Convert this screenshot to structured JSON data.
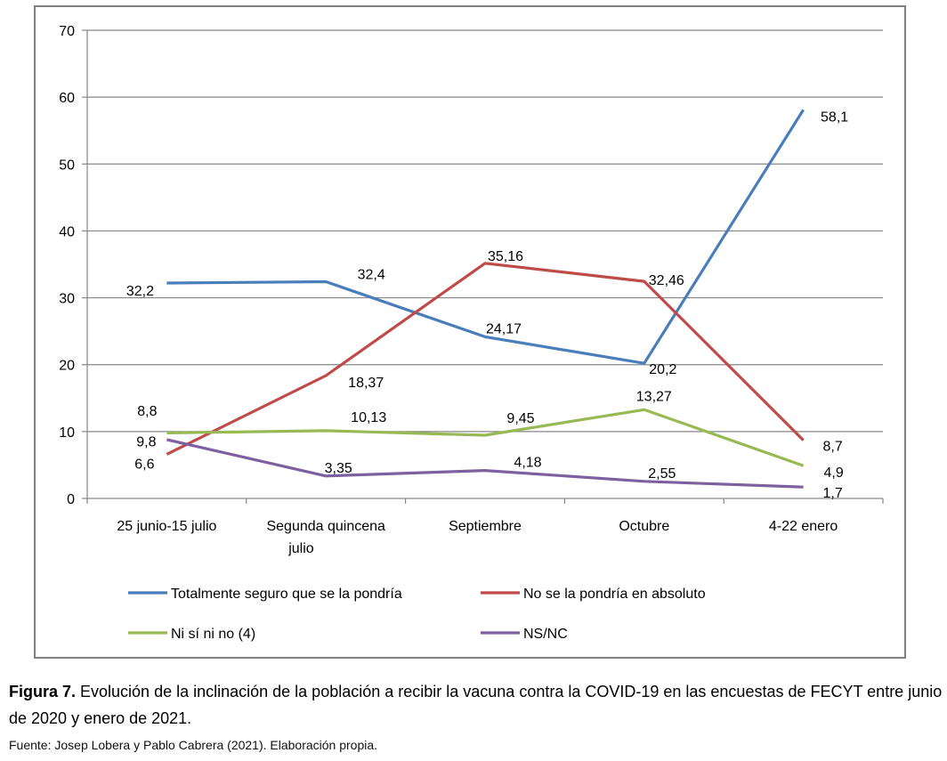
{
  "chart_data": {
    "type": "line",
    "categories": [
      "25 junio-15 julio",
      "Segunda quincena julio",
      "Septiembre",
      "Octubre",
      "4-22 enero"
    ],
    "category_lines": [
      [
        "25 junio-15 julio"
      ],
      [
        "Segunda quincena",
        "julio"
      ],
      [
        "Septiembre"
      ],
      [
        "Octubre"
      ],
      [
        "4-22 enero"
      ]
    ],
    "ylim": [
      0,
      70
    ],
    "yticks": [
      0,
      10,
      20,
      30,
      40,
      50,
      60,
      70
    ],
    "grid": true,
    "legend": "bottom",
    "series": [
      {
        "name": "Totalmente seguro que se la pondría",
        "color": "#4a7ebb",
        "values": [
          32.2,
          32.4,
          24.17,
          20.2,
          58.1
        ],
        "labels": [
          "32,2",
          "32,4",
          "24,17",
          "20,2",
          "58,1"
        ]
      },
      {
        "name": "No se la pondría en absoluto",
        "color": "#be4b48",
        "values": [
          6.6,
          18.37,
          35.16,
          32.46,
          8.7
        ],
        "labels": [
          "6,6",
          "18,37",
          "35,16",
          "32,46",
          "8,7"
        ]
      },
      {
        "name": "Ni sí ni no (4)",
        "color": "#98b954",
        "values": [
          9.8,
          10.13,
          9.45,
          13.27,
          4.9
        ],
        "labels": [
          "9,8",
          "10,13",
          "9,45",
          "13,27",
          "4,9"
        ]
      },
      {
        "name": "NS/NC",
        "color": "#7d60a0",
        "values": [
          8.8,
          3.35,
          4.18,
          2.55,
          1.7
        ],
        "labels": [
          "8,8",
          "3,35",
          "4,18",
          "2,55",
          "1,7"
        ]
      }
    ]
  },
  "caption": {
    "figure_label": "Figura 7.",
    "text": " Evolución de la inclinación de la población a recibir la vacuna contra la COVID-19 en las encuestas de FECYT entre junio de 2020 y enero de 2021."
  },
  "source": "Fuente: Josep Lobera y Pablo Cabrera (2021). Elaboración propia."
}
